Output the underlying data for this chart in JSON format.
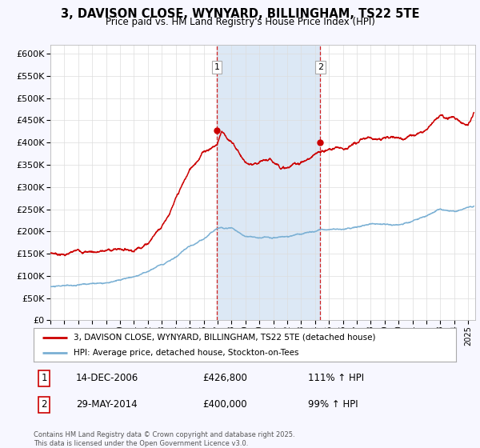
{
  "title": "3, DAVISON CLOSE, WYNYARD, BILLINGHAM, TS22 5TE",
  "subtitle": "Price paid vs. HM Land Registry's House Price Index (HPI)",
  "ylim": [
    0,
    620000
  ],
  "yticks": [
    0,
    50000,
    100000,
    150000,
    200000,
    250000,
    300000,
    350000,
    400000,
    450000,
    500000,
    550000,
    600000
  ],
  "xlim_start": 1995.0,
  "xlim_end": 2025.5,
  "bg_color": "#f7f7ff",
  "plot_bg": "#ffffff",
  "red_color": "#cc0000",
  "blue_color": "#7ab0d4",
  "highlight_bg": "#dce8f5",
  "dashed_color": "#cc0000",
  "t1_x": 2006.95,
  "t2_x": 2014.37,
  "t1_y": 426800,
  "t2_y": 400000,
  "legend_line1": "3, DAVISON CLOSE, WYNYARD, BILLINGHAM, TS22 5TE (detached house)",
  "legend_line2": "HPI: Average price, detached house, Stockton-on-Tees",
  "footnote": "Contains HM Land Registry data © Crown copyright and database right 2025.\nThis data is licensed under the Open Government Licence v3.0."
}
